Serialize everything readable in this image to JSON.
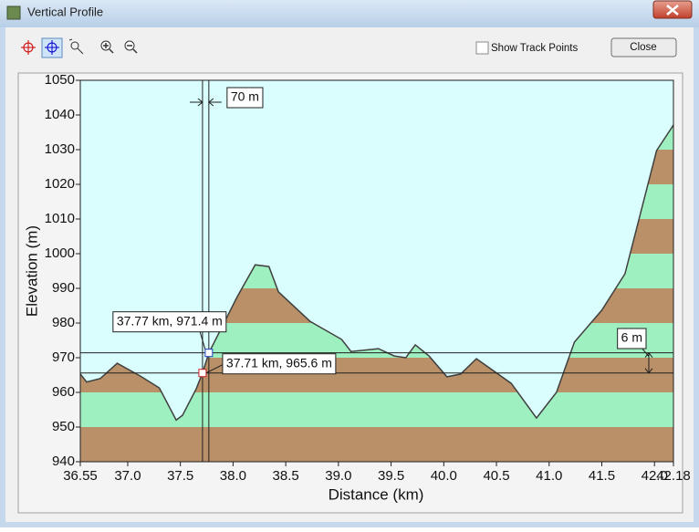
{
  "window": {
    "title": "Vertical Profile",
    "checkbox_label": "Show Track Points",
    "close_button": "Close"
  },
  "chart_data": {
    "type": "area",
    "x_label": "Distance (km)",
    "y_label": "Elevation (m)",
    "xlim": [
      36.55,
      42.18
    ],
    "xticks": [
      36.55,
      {
        "value": 37,
        "label": "37.0"
      },
      37.5,
      {
        "value": 38,
        "label": "38.0"
      },
      38.5,
      {
        "value": 39,
        "label": "39.0"
      },
      39.5,
      {
        "value": 40,
        "label": "40.0"
      },
      40.5,
      {
        "value": 41,
        "label": "41.0"
      },
      41.5,
      {
        "value": 42,
        "label": "42.0"
      },
      42.18
    ],
    "ylim": [
      940,
      1050
    ],
    "yticks": [
      940,
      950,
      960,
      970,
      980,
      990,
      1000,
      1010,
      1020,
      1030,
      1040,
      1050
    ],
    "profile": {
      "distance": [
        36.55,
        36.61,
        36.74,
        36.9,
        37.12,
        37.3,
        37.46,
        37.52,
        37.65,
        37.71,
        37.77,
        38.04,
        38.21,
        38.34,
        38.43,
        38.73,
        39.03,
        39.12,
        39.38,
        39.53,
        39.64,
        39.73,
        39.86,
        40.03,
        40.16,
        40.31,
        40.64,
        40.88,
        41.07,
        41.24,
        41.5,
        41.72,
        42.02,
        42.18
      ],
      "elevation": [
        965.3,
        963,
        964,
        968.4,
        964.7,
        961.3,
        952,
        953.4,
        961,
        965.6,
        971.4,
        987.6,
        996.8,
        996.3,
        989,
        980.5,
        975.3,
        971.8,
        972.6,
        970.5,
        970,
        973.7,
        970.5,
        964.5,
        965.3,
        969.7,
        962.6,
        952.6,
        960,
        974.5,
        983.7,
        994.2,
        1029.7,
        1037.1
      ]
    },
    "cursors": [
      {
        "x": 37.77,
        "y": 971.4,
        "label": "37.77 km, 971.4 m",
        "color": "#2040c0"
      },
      {
        "x": 37.71,
        "y": 965.6,
        "label": "37.71 km, 965.6 m",
        "color": "#d02020"
      }
    ],
    "x_distance_label": "70 m",
    "y_distance_label": "6 m",
    "colors": {
      "sky": "#dafdfd",
      "band_a": "#b99068",
      "band_b": "#9ff0c0",
      "line": "#404040"
    }
  }
}
